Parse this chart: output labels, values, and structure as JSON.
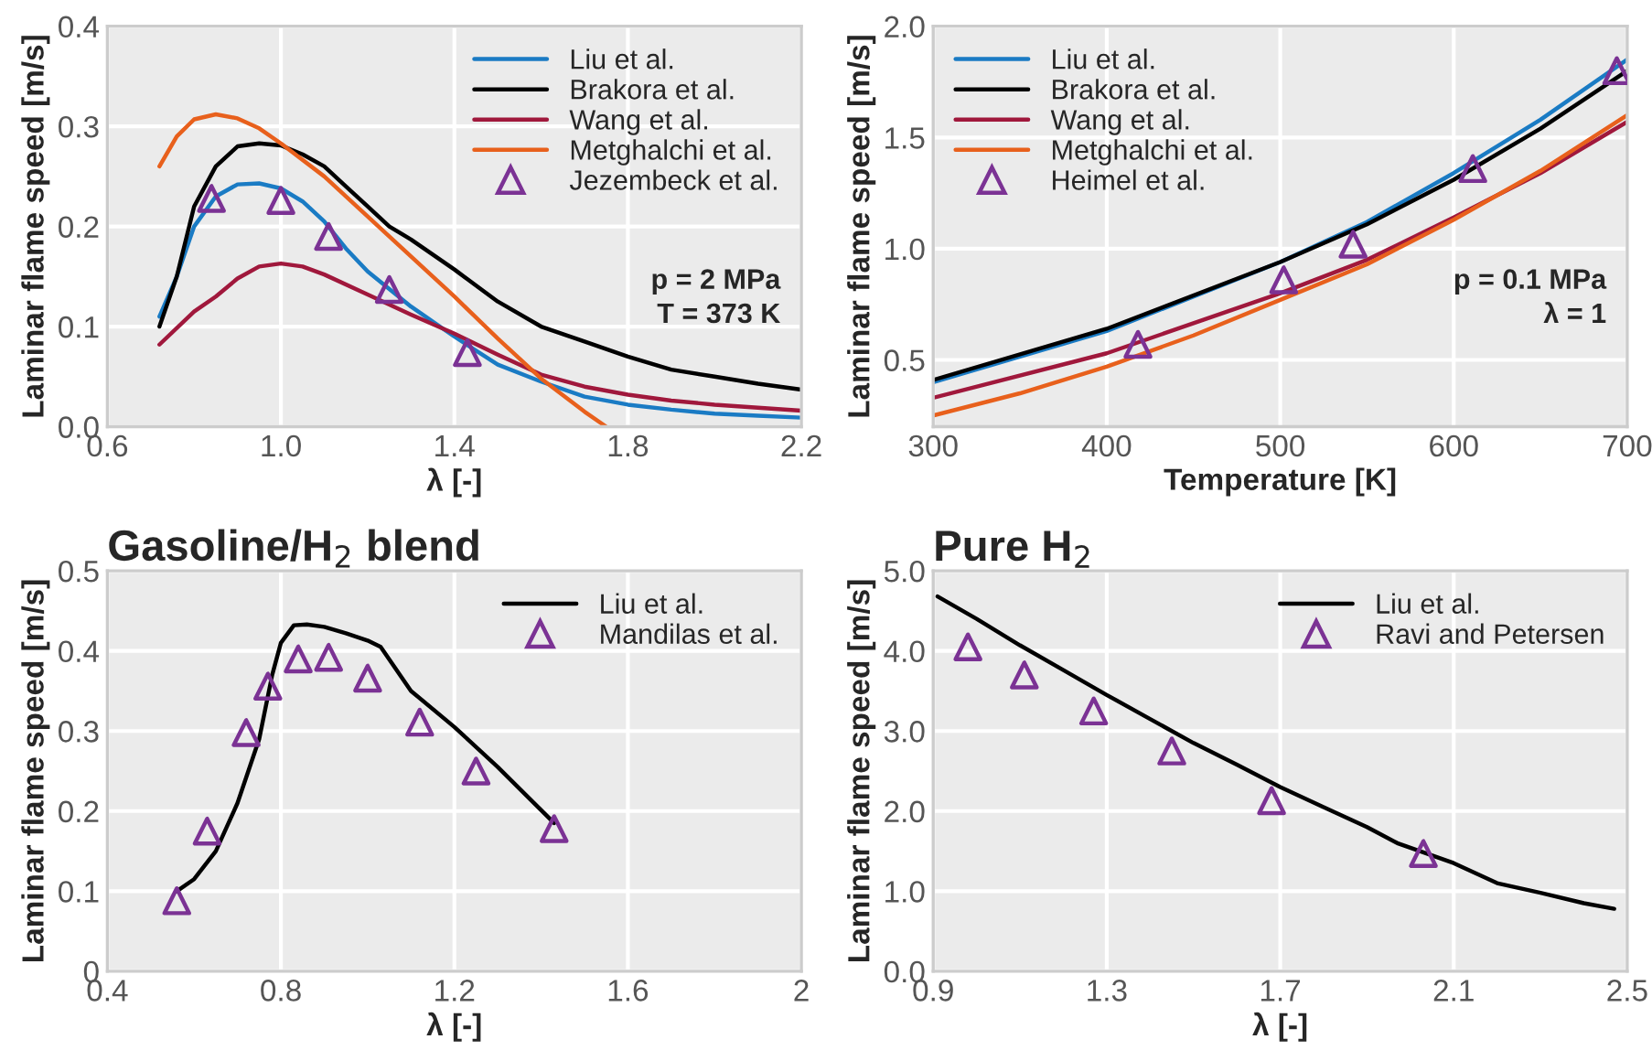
{
  "chart_data": [
    {
      "type": "line",
      "xlabel": "λ [-]",
      "ylabel": "Laminar flame speed [m/s]",
      "xlim": [
        0.6,
        2.2
      ],
      "ylim": [
        0,
        0.4
      ],
      "xticks": [
        0.6,
        {
          "value": 1.0,
          "label": "1.0"
        },
        1.4,
        1.8,
        2.2
      ],
      "yticks": [
        {
          "value": 0,
          "label": "0.0"
        },
        0.1,
        0.2,
        0.3,
        0.4
      ],
      "grid": true,
      "legend": "top right",
      "annotations": [
        "p = 2 MPa\nT = 373 K"
      ],
      "series": [
        {
          "name": "Liu et al.",
          "color": "#1a7bc4",
          "x": [
            0.72,
            0.76,
            0.8,
            0.85,
            0.9,
            0.95,
            1.0,
            1.05,
            1.1,
            1.15,
            1.2,
            1.3,
            1.4,
            1.5,
            1.6,
            1.7,
            1.8,
            1.9,
            2.0,
            2.1,
            2.2
          ],
          "values": [
            0.11,
            0.15,
            0.2,
            0.23,
            0.242,
            0.243,
            0.238,
            0.225,
            0.205,
            0.178,
            0.155,
            0.12,
            0.09,
            0.062,
            0.045,
            0.03,
            0.022,
            0.017,
            0.013,
            0.011,
            0.009
          ]
        },
        {
          "name": "Brakora et al.",
          "color": "#000000",
          "x": [
            0.72,
            0.76,
            0.8,
            0.85,
            0.9,
            0.95,
            1.0,
            1.05,
            1.1,
            1.15,
            1.2,
            1.25,
            1.3,
            1.4,
            1.5,
            1.6,
            1.7,
            1.8,
            1.9,
            2.0,
            2.1,
            2.2
          ],
          "values": [
            0.1,
            0.15,
            0.22,
            0.26,
            0.28,
            0.283,
            0.281,
            0.272,
            0.26,
            0.24,
            0.22,
            0.2,
            0.187,
            0.157,
            0.125,
            0.1,
            0.085,
            0.07,
            0.057,
            0.05,
            0.043,
            0.037
          ]
        },
        {
          "name": "Wang et al.",
          "color": "#a0183c",
          "x": [
            0.72,
            0.8,
            0.85,
            0.9,
            0.95,
            1.0,
            1.05,
            1.1,
            1.2,
            1.3,
            1.4,
            1.5,
            1.6,
            1.7,
            1.8,
            1.9,
            2.0,
            2.1,
            2.2
          ],
          "values": [
            0.082,
            0.115,
            0.13,
            0.148,
            0.16,
            0.163,
            0.16,
            0.152,
            0.132,
            0.112,
            0.093,
            0.072,
            0.052,
            0.04,
            0.032,
            0.026,
            0.022,
            0.019,
            0.016
          ]
        },
        {
          "name": "Metghalchi et al.",
          "color": "#e8601c",
          "x": [
            0.72,
            0.76,
            0.8,
            0.85,
            0.9,
            0.95,
            1.0,
            1.1,
            1.2,
            1.3,
            1.4,
            1.5,
            1.6,
            1.7,
            1.75
          ],
          "values": [
            0.26,
            0.29,
            0.307,
            0.312,
            0.308,
            0.298,
            0.283,
            0.25,
            0.21,
            0.17,
            0.13,
            0.088,
            0.048,
            0.015,
            0.0
          ]
        },
        {
          "name": "Jezembeck et al.",
          "type": "scatter",
          "marker": "triangle",
          "color": "#7b3294",
          "x": [
            0.84,
            1.0,
            1.11,
            1.25,
            1.43
          ],
          "values": [
            0.228,
            0.226,
            0.19,
            0.137,
            0.074
          ]
        }
      ]
    },
    {
      "type": "line",
      "xlabel": "Temperature [K]",
      "ylabel": "Laminar flame speed [m/s]",
      "xlim": [
        300,
        700
      ],
      "ylim": [
        0.2,
        2.0
      ],
      "xticks": [
        300,
        400,
        500,
        600,
        700
      ],
      "yticks": [
        0.5,
        {
          "value": 1.0,
          "label": "1.0"
        },
        1.5,
        {
          "value": 2.0,
          "label": "2.0"
        }
      ],
      "grid": true,
      "legend": "top left",
      "annotations": [
        "p = 0.1 MPa\nλ = 1"
      ],
      "series": [
        {
          "name": "Liu et al.",
          "color": "#1a7bc4",
          "x": [
            300,
            400,
            500,
            550,
            600,
            650,
            700
          ],
          "values": [
            0.4,
            0.63,
            0.94,
            1.12,
            1.34,
            1.58,
            1.85
          ]
        },
        {
          "name": "Brakora et al.",
          "color": "#000000",
          "x": [
            300,
            400,
            500,
            550,
            600,
            650,
            700
          ],
          "values": [
            0.41,
            0.64,
            0.94,
            1.11,
            1.31,
            1.54,
            1.8
          ]
        },
        {
          "name": "Wang et al.",
          "color": "#a0183c",
          "x": [
            300,
            400,
            500,
            550,
            600,
            650,
            700
          ],
          "values": [
            0.33,
            0.53,
            0.8,
            0.95,
            1.14,
            1.34,
            1.57
          ]
        },
        {
          "name": "Metghalchi et al.",
          "color": "#e8601c",
          "x": [
            300,
            350,
            400,
            450,
            500,
            550,
            600,
            650,
            700
          ],
          "values": [
            0.25,
            0.35,
            0.47,
            0.61,
            0.77,
            0.93,
            1.13,
            1.35,
            1.6
          ]
        },
        {
          "name": "Heimel et al.",
          "type": "scatter",
          "marker": "triangle",
          "color": "#7b3294",
          "x": [
            418,
            502,
            542,
            611,
            694
          ],
          "values": [
            0.57,
            0.86,
            1.02,
            1.36,
            1.8
          ]
        }
      ]
    },
    {
      "type": "line",
      "title": "Gasoline/H$_{2}$ blend",
      "xlabel": "λ [-]",
      "ylabel": "Laminar flame speed [m/s]",
      "xlim": [
        0.4,
        2
      ],
      "ylim": [
        0,
        0.5
      ],
      "xticks": [
        0.4,
        0.8,
        1.2,
        1.6,
        2
      ],
      "yticks": [
        0,
        0.1,
        0.2,
        0.3,
        0.4,
        0.5
      ],
      "grid": true,
      "legend": "top right",
      "series": [
        {
          "name": "Liu et al.",
          "color": "#000000",
          "x": [
            0.56,
            0.6,
            0.65,
            0.7,
            0.75,
            0.78,
            0.8,
            0.83,
            0.86,
            0.9,
            0.95,
            1.0,
            1.03,
            1.1,
            1.2,
            1.3,
            1.43
          ],
          "values": [
            0.1,
            0.115,
            0.15,
            0.21,
            0.29,
            0.37,
            0.41,
            0.432,
            0.433,
            0.43,
            0.422,
            0.413,
            0.405,
            0.35,
            0.305,
            0.255,
            0.185
          ]
        },
        {
          "name": "Mandilas et al.",
          "type": "scatter",
          "marker": "triangle",
          "color": "#7b3294",
          "x": [
            0.56,
            0.63,
            0.72,
            0.77,
            0.84,
            0.91,
            1.0,
            1.12,
            1.25,
            1.43
          ],
          "values": [
            0.088,
            0.175,
            0.298,
            0.356,
            0.39,
            0.392,
            0.366,
            0.311,
            0.25,
            0.178
          ]
        }
      ]
    },
    {
      "type": "line",
      "title": "Pure H$_{2}$",
      "xlabel": "λ [-]",
      "ylabel": "Laminar flame speed [m/s]",
      "xlim": [
        0.9,
        2.5
      ],
      "ylim": [
        0,
        5
      ],
      "xticks": [
        0.9,
        1.3,
        1.7,
        2.1,
        2.5
      ],
      "yticks": [
        {
          "value": 0,
          "label": "0.0"
        },
        {
          "value": 1,
          "label": "1.0"
        },
        {
          "value": 2,
          "label": "2.0"
        },
        {
          "value": 3,
          "label": "3.0"
        },
        {
          "value": 4,
          "label": "4.0"
        },
        {
          "value": 5,
          "label": "5.0"
        }
      ],
      "grid": true,
      "legend": "top right",
      "series": [
        {
          "name": "Liu et al.",
          "color": "#000000",
          "x": [
            0.91,
            1.0,
            1.1,
            1.2,
            1.3,
            1.4,
            1.5,
            1.6,
            1.7,
            1.8,
            1.9,
            1.97,
            2.1,
            2.2,
            2.3,
            2.4,
            2.47
          ],
          "values": [
            4.68,
            4.4,
            4.07,
            3.76,
            3.45,
            3.15,
            2.85,
            2.58,
            2.3,
            2.05,
            1.8,
            1.6,
            1.35,
            1.1,
            0.98,
            0.85,
            0.78
          ]
        },
        {
          "name": "Ravi and Petersen",
          "type": "scatter",
          "marker": "triangle",
          "color": "#7b3294",
          "x": [
            0.98,
            1.11,
            1.27,
            1.45,
            1.68,
            2.03
          ],
          "values": [
            4.05,
            3.7,
            3.25,
            2.75,
            2.13,
            1.47
          ]
        }
      ]
    }
  ]
}
